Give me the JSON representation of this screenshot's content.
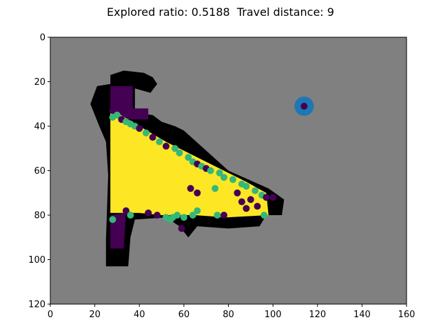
{
  "title": "Explored ratio: 0.5188  Travel distance: 9",
  "chart_data": {
    "type": "heatmap",
    "title": "Explored ratio: 0.5188  Travel distance: 9",
    "explored_ratio": 0.5188,
    "travel_distance": 9,
    "xlim": [
      0,
      160
    ],
    "ylim": [
      120,
      0
    ],
    "x_ticks": [
      0,
      20,
      40,
      60,
      80,
      100,
      120,
      140,
      160
    ],
    "y_ticks": [
      0,
      20,
      40,
      60,
      80,
      100,
      120
    ],
    "background_color": "#808080",
    "colors": {
      "unknown": "#808080",
      "obstacle": "#000000",
      "free": "#fde725",
      "frontier_low": "#440154",
      "frontier_high": "#35b779",
      "robot_outer": "#1f77b4",
      "robot_inner": "#440154"
    },
    "obstacle_regions": [
      [
        [
          27,
          17
        ],
        [
          33,
          15
        ],
        [
          42,
          16
        ],
        [
          46,
          18
        ],
        [
          48,
          21
        ],
        [
          45,
          25
        ],
        [
          38,
          23
        ],
        [
          38,
          34
        ],
        [
          46,
          35
        ],
        [
          50,
          38
        ],
        [
          56,
          40
        ],
        [
          60,
          42
        ],
        [
          80,
          60
        ],
        [
          98,
          68
        ],
        [
          105,
          73
        ],
        [
          104,
          80
        ],
        [
          97,
          80
        ],
        [
          94,
          85
        ],
        [
          80,
          86
        ],
        [
          66,
          85
        ],
        [
          62,
          90
        ],
        [
          58,
          85
        ],
        [
          52,
          81
        ],
        [
          38,
          82
        ],
        [
          36,
          90
        ],
        [
          35,
          103
        ],
        [
          25,
          103
        ],
        [
          25,
          91
        ],
        [
          26,
          62
        ],
        [
          25,
          47
        ],
        [
          22,
          40
        ],
        [
          18,
          30
        ],
        [
          21,
          22
        ],
        [
          27,
          21
        ]
      ]
    ],
    "purple_regions": [
      [
        [
          27,
          22
        ],
        [
          37,
          22
        ],
        [
          37,
          32
        ],
        [
          44,
          32
        ],
        [
          44,
          37
        ],
        [
          27,
          37
        ]
      ],
      [
        [
          27,
          80
        ],
        [
          34,
          79
        ],
        [
          33,
          95
        ],
        [
          27,
          95
        ]
      ]
    ],
    "free_region": [
      [
        27,
        34
      ],
      [
        30,
        34
      ],
      [
        40,
        40
      ],
      [
        52,
        47
      ],
      [
        60,
        51
      ],
      [
        70,
        56
      ],
      [
        80,
        61
      ],
      [
        88,
        65
      ],
      [
        97,
        70
      ],
      [
        98,
        80
      ],
      [
        79,
        81
      ],
      [
        65,
        80
      ],
      [
        50,
        80
      ],
      [
        40,
        79
      ],
      [
        27,
        79
      ]
    ],
    "frontier_points": [
      [
        28,
        33,
        "low"
      ],
      [
        28,
        36,
        "high"
      ],
      [
        30,
        35,
        "high"
      ],
      [
        32,
        37,
        "low"
      ],
      [
        34,
        38,
        "high"
      ],
      [
        36,
        39,
        "high"
      ],
      [
        38,
        40,
        "high"
      ],
      [
        40,
        41,
        "low"
      ],
      [
        43,
        43,
        "high"
      ],
      [
        46,
        45,
        "low"
      ],
      [
        49,
        47,
        "high"
      ],
      [
        52,
        49,
        "low"
      ],
      [
        56,
        50,
        "high"
      ],
      [
        58,
        52,
        "high"
      ],
      [
        62,
        54,
        "high"
      ],
      [
        64,
        56,
        "high"
      ],
      [
        66,
        57,
        "low"
      ],
      [
        68,
        58,
        "high"
      ],
      [
        70,
        59,
        "low"
      ],
      [
        72,
        60,
        "high"
      ],
      [
        76,
        61,
        "high"
      ],
      [
        78,
        63,
        "high"
      ],
      [
        82,
        64,
        "high"
      ],
      [
        86,
        66,
        "high"
      ],
      [
        88,
        67,
        "high"
      ],
      [
        92,
        69,
        "high"
      ],
      [
        95,
        71,
        "high"
      ],
      [
        97,
        72,
        "low"
      ],
      [
        100,
        72,
        "low"
      ],
      [
        84,
        70,
        "low"
      ],
      [
        86,
        74,
        "low"
      ],
      [
        90,
        73,
        "low"
      ],
      [
        93,
        76,
        "low"
      ],
      [
        96,
        80,
        "high"
      ],
      [
        88,
        77,
        "low"
      ],
      [
        28,
        82,
        "high"
      ],
      [
        31,
        81,
        "low"
      ],
      [
        34,
        78,
        "low"
      ],
      [
        36,
        80,
        "high"
      ],
      [
        44,
        79,
        "low"
      ],
      [
        48,
        80,
        "low"
      ],
      [
        52,
        81,
        "high"
      ],
      [
        54,
        82,
        "high"
      ],
      [
        57,
        80,
        "high"
      ],
      [
        60,
        81,
        "high"
      ],
      [
        64,
        80,
        "high"
      ],
      [
        66,
        78,
        "high"
      ],
      [
        75,
        80,
        "high"
      ],
      [
        78,
        80,
        "low"
      ],
      [
        74,
        68,
        "high"
      ],
      [
        66,
        70,
        "low"
      ],
      [
        63,
        68,
        "low"
      ],
      [
        59,
        86,
        "low"
      ],
      [
        55,
        81,
        "high"
      ]
    ],
    "robot_position": [
      114,
      31
    ]
  }
}
